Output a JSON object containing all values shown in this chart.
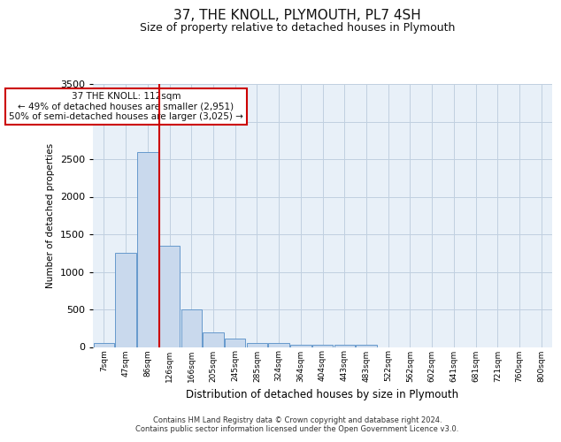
{
  "title1": "37, THE KNOLL, PLYMOUTH, PL7 4SH",
  "title2": "Size of property relative to detached houses in Plymouth",
  "xlabel": "Distribution of detached houses by size in Plymouth",
  "ylabel": "Number of detached properties",
  "footer1": "Contains HM Land Registry data © Crown copyright and database right 2024.",
  "footer2": "Contains public sector information licensed under the Open Government Licence v3.0.",
  "annotation_line1": "37 THE KNOLL: 112sqm",
  "annotation_line2": "← 49% of detached houses are smaller (2,951)",
  "annotation_line3": "50% of semi-detached houses are larger (3,025) →",
  "bar_color": "#c9d9ed",
  "bar_edge_color": "#6699cc",
  "grid_color": "#c0d0e0",
  "bg_color": "#e8f0f8",
  "red_line_color": "#cc0000",
  "annotation_box_color": "#cc0000",
  "bins": [
    "7sqm",
    "47sqm",
    "86sqm",
    "126sqm",
    "166sqm",
    "205sqm",
    "245sqm",
    "285sqm",
    "324sqm",
    "364sqm",
    "404sqm",
    "443sqm",
    "483sqm",
    "522sqm",
    "562sqm",
    "602sqm",
    "641sqm",
    "681sqm",
    "721sqm",
    "760sqm",
    "800sqm"
  ],
  "values": [
    50,
    1250,
    2600,
    1350,
    500,
    200,
    110,
    50,
    50,
    30,
    30,
    30,
    30,
    0,
    0,
    0,
    0,
    0,
    0,
    0,
    0
  ],
  "ylim": [
    0,
    3500
  ],
  "red_line_bin_index": 3
}
